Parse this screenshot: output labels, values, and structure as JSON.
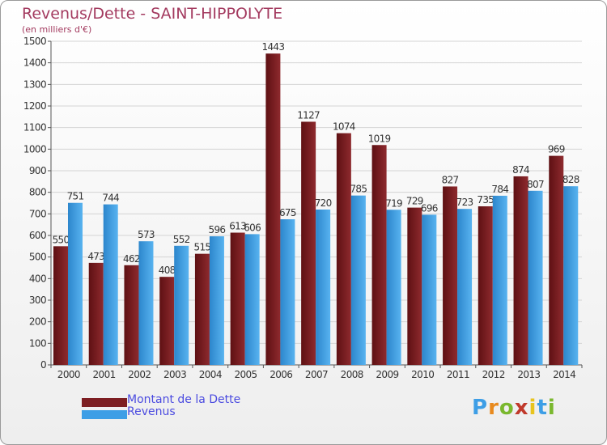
{
  "title": "Revenus/Dette - SAINT-HIPPOLYTE",
  "subtitle": "(en milliers d'€)",
  "colors": {
    "dette": "#7d1e22",
    "revenus": "#3d9ee6",
    "title": "#a33a5f",
    "legend_text": "#4b4be0"
  },
  "legend": [
    {
      "label": "Montant de la Dette",
      "color": "#7d1e22"
    },
    {
      "label": "Revenus",
      "color": "#3d9ee6"
    }
  ],
  "logo": {
    "text": "Proxiti",
    "letters": [
      "P",
      "r",
      "o",
      "x",
      "i",
      "t",
      "i"
    ],
    "colors": [
      "#3d9ee6",
      "#e88a1e",
      "#7ab82e",
      "#c0392b",
      "#e8c41e",
      "#3d9ee6",
      "#7ab82e"
    ]
  },
  "chart_data": {
    "type": "bar",
    "title": "Revenus/Dette - SAINT-HIPPOLYTE",
    "ylabel": "(en milliers d'€)",
    "xlabel": "",
    "categories": [
      "2000",
      "2001",
      "2002",
      "2003",
      "2004",
      "2005",
      "2006",
      "2007",
      "2008",
      "2009",
      "2010",
      "2011",
      "2012",
      "2013",
      "2014"
    ],
    "series": [
      {
        "name": "Montant de la Dette",
        "values": [
          550,
          473,
          462,
          408,
          515,
          613,
          1443,
          1127,
          1074,
          1019,
          729,
          827,
          735,
          874,
          969
        ]
      },
      {
        "name": "Revenus",
        "values": [
          751,
          744,
          573,
          552,
          596,
          606,
          675,
          720,
          785,
          719,
          696,
          723,
          784,
          807,
          828
        ]
      }
    ],
    "ylim": [
      0,
      1500
    ],
    "yticks": [
      0,
      100,
      200,
      300,
      400,
      500,
      600,
      700,
      800,
      900,
      1000,
      1100,
      1200,
      1300,
      1400,
      1500
    ],
    "grid": true,
    "legend_position": "bottom-left"
  }
}
